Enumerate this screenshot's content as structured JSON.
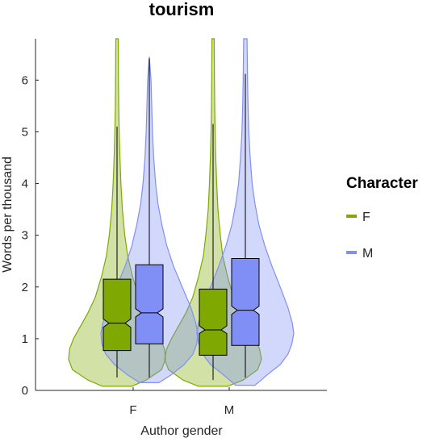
{
  "chart_data": {
    "type": "violin",
    "title": "tourism",
    "xlabel": "Author gender",
    "ylabel": "Words per thousand",
    "categories": [
      "F",
      "M"
    ],
    "ylim": [
      0,
      6.8
    ],
    "yticks": [
      0,
      1,
      2,
      3,
      4,
      5,
      6
    ],
    "grid": false,
    "legend": {
      "title": "Character",
      "position": "right",
      "entries": [
        "F",
        "M"
      ]
    },
    "series": [
      {
        "name": "F",
        "color": "#7fa900",
        "groups": [
          {
            "category": "F",
            "whisker_low": 0.25,
            "q1": 0.77,
            "median": 1.3,
            "notch_low": 1.22,
            "notch_high": 1.38,
            "q3": 2.15,
            "whisker_high": 5.1,
            "violin_min": 0.08,
            "violin_max": 6.8,
            "density": [
              [
                0.08,
                0.3
              ],
              [
                0.2,
                0.6
              ],
              [
                0.4,
                0.92
              ],
              [
                0.6,
                1.0
              ],
              [
                0.8,
                0.98
              ],
              [
                1.0,
                0.9
              ],
              [
                1.2,
                0.78
              ],
              [
                1.5,
                0.6
              ],
              [
                1.8,
                0.45
              ],
              [
                2.2,
                0.32
              ],
              [
                2.6,
                0.22
              ],
              [
                3.0,
                0.16
              ],
              [
                3.5,
                0.11
              ],
              [
                4.0,
                0.08
              ],
              [
                4.5,
                0.06
              ],
              [
                5.0,
                0.045
              ],
              [
                5.5,
                0.035
              ],
              [
                6.0,
                0.03
              ],
              [
                6.8,
                0.025
              ]
            ]
          },
          {
            "category": "M",
            "whisker_low": 0.2,
            "q1": 0.68,
            "median": 1.17,
            "notch_low": 1.1,
            "notch_high": 1.25,
            "q3": 1.96,
            "whisker_high": 5.15,
            "violin_min": 0.08,
            "violin_max": 6.8,
            "density": [
              [
                0.08,
                0.3
              ],
              [
                0.2,
                0.62
              ],
              [
                0.4,
                0.92
              ],
              [
                0.6,
                1.0
              ],
              [
                0.8,
                0.96
              ],
              [
                1.0,
                0.86
              ],
              [
                1.2,
                0.74
              ],
              [
                1.5,
                0.56
              ],
              [
                1.8,
                0.42
              ],
              [
                2.2,
                0.3
              ],
              [
                2.6,
                0.2
              ],
              [
                3.0,
                0.15
              ],
              [
                3.5,
                0.1
              ],
              [
                4.0,
                0.075
              ],
              [
                4.5,
                0.055
              ],
              [
                5.0,
                0.042
              ],
              [
                5.5,
                0.033
              ],
              [
                6.0,
                0.028
              ],
              [
                6.8,
                0.024
              ]
            ]
          }
        ]
      },
      {
        "name": "M",
        "color": "#7f8ff5",
        "groups": [
          {
            "category": "F",
            "whisker_low": 0.25,
            "q1": 0.9,
            "median": 1.5,
            "notch_low": 1.42,
            "notch_high": 1.58,
            "q3": 2.43,
            "whisker_high": 6.42,
            "violin_min": 0.15,
            "violin_max": 6.45,
            "density": [
              [
                0.15,
                0.2
              ],
              [
                0.3,
                0.45
              ],
              [
                0.5,
                0.72
              ],
              [
                0.7,
                0.9
              ],
              [
                0.9,
                0.98
              ],
              [
                1.1,
                1.0
              ],
              [
                1.3,
                0.96
              ],
              [
                1.6,
                0.86
              ],
              [
                2.0,
                0.68
              ],
              [
                2.4,
                0.5
              ],
              [
                2.8,
                0.36
              ],
              [
                3.2,
                0.26
              ],
              [
                3.6,
                0.18
              ],
              [
                4.0,
                0.13
              ],
              [
                4.5,
                0.09
              ],
              [
                5.0,
                0.065
              ],
              [
                5.5,
                0.05
              ],
              [
                6.0,
                0.035
              ],
              [
                6.45,
                0.0
              ]
            ]
          },
          {
            "category": "M",
            "whisker_low": 0.25,
            "q1": 0.87,
            "median": 1.55,
            "notch_low": 1.47,
            "notch_high": 1.63,
            "q3": 2.55,
            "whisker_high": 6.12,
            "violin_min": 0.1,
            "violin_max": 6.8,
            "density": [
              [
                0.1,
                0.2
              ],
              [
                0.3,
                0.45
              ],
              [
                0.5,
                0.72
              ],
              [
                0.7,
                0.88
              ],
              [
                0.9,
                0.96
              ],
              [
                1.1,
                1.0
              ],
              [
                1.3,
                0.97
              ],
              [
                1.6,
                0.88
              ],
              [
                2.0,
                0.72
              ],
              [
                2.4,
                0.55
              ],
              [
                2.8,
                0.4
              ],
              [
                3.2,
                0.28
              ],
              [
                3.6,
                0.2
              ],
              [
                4.0,
                0.14
              ],
              [
                4.5,
                0.1
              ],
              [
                5.0,
                0.07
              ],
              [
                5.5,
                0.055
              ],
              [
                6.0,
                0.045
              ],
              [
                6.8,
                0.035
              ]
            ]
          }
        ]
      }
    ]
  }
}
